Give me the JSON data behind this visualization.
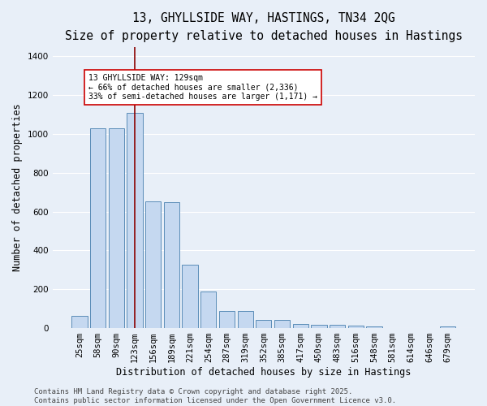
{
  "title1": "13, GHYLLSIDE WAY, HASTINGS, TN34 2QG",
  "title2": "Size of property relative to detached houses in Hastings",
  "xlabel": "Distribution of detached houses by size in Hastings",
  "ylabel": "Number of detached properties",
  "categories": [
    "25sqm",
    "58sqm",
    "90sqm",
    "123sqm",
    "156sqm",
    "189sqm",
    "221sqm",
    "254sqm",
    "287sqm",
    "319sqm",
    "352sqm",
    "385sqm",
    "417sqm",
    "450sqm",
    "483sqm",
    "516sqm",
    "548sqm",
    "581sqm",
    "614sqm",
    "646sqm",
    "679sqm"
  ],
  "values": [
    62,
    1030,
    1028,
    1110,
    655,
    648,
    325,
    190,
    90,
    90,
    42,
    42,
    22,
    18,
    18,
    14,
    8,
    0,
    0,
    0,
    10
  ],
  "bar_color": "#c5d8f0",
  "bar_edge_color": "#5b8db8",
  "bg_color": "#e8eff8",
  "grid_color": "#ffffff",
  "vline_x": 3,
  "vline_color": "#8b0000",
  "annotation_text": "13 GHYLLSIDE WAY: 129sqm\n← 66% of detached houses are smaller (2,336)\n33% of semi-detached houses are larger (1,171) →",
  "annotation_box_color": "#ffffff",
  "annotation_box_edge": "#cc0000",
  "ylim": [
    0,
    1450
  ],
  "yticks": [
    0,
    200,
    400,
    600,
    800,
    1000,
    1200,
    1400
  ],
  "footer": "Contains HM Land Registry data © Crown copyright and database right 2025.\nContains public sector information licensed under the Open Government Licence v3.0.",
  "title1_fontsize": 10.5,
  "title2_fontsize": 9.5,
  "xlabel_fontsize": 8.5,
  "ylabel_fontsize": 8.5,
  "footer_fontsize": 6.5,
  "tick_fontsize": 7.5,
  "annot_fontsize": 7.0
}
